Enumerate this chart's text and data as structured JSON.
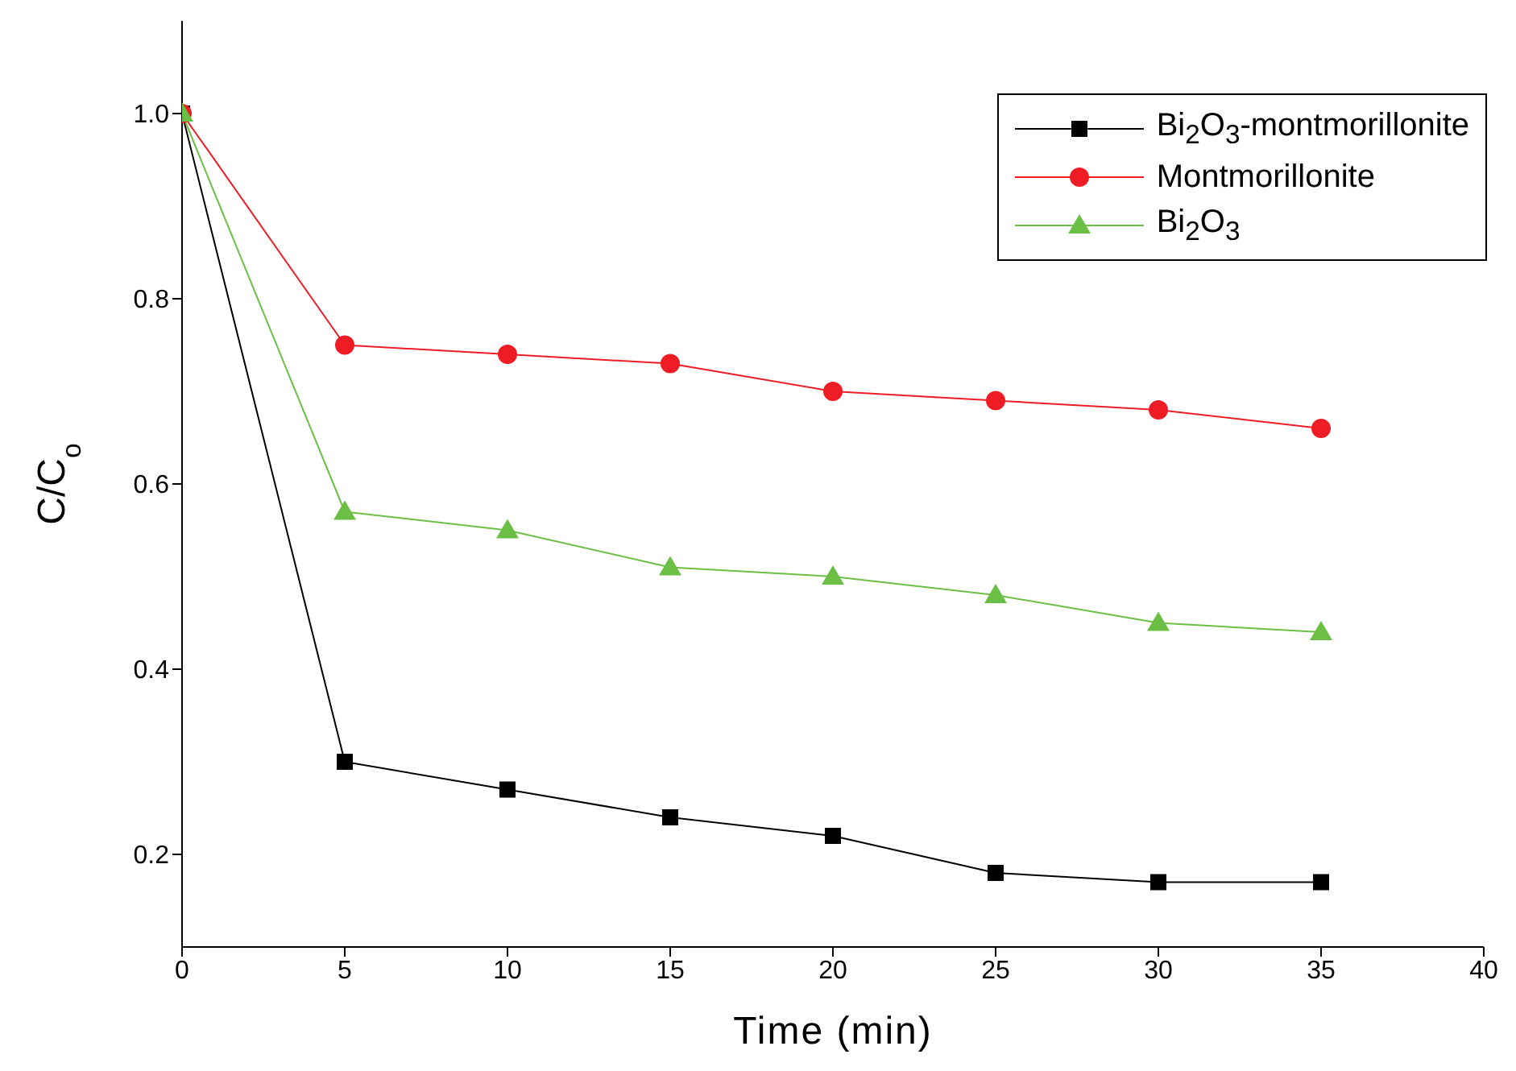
{
  "chart_data": {
    "type": "line",
    "xlabel": "Time (min)",
    "ylabel": "C/C$_{o}$",
    "x": [
      0,
      5,
      10,
      15,
      20,
      25,
      30,
      35
    ],
    "series": [
      {
        "name": "Bi$_{2}$O$_{3}$-montmorillonite",
        "color": "#000000",
        "marker": "square",
        "values": [
          1.0,
          0.3,
          0.27,
          0.24,
          0.22,
          0.18,
          0.17,
          0.17
        ]
      },
      {
        "name": "Montmorillonite",
        "color": "#ee1c25",
        "marker": "circle",
        "values": [
          1.0,
          0.75,
          0.74,
          0.73,
          0.7,
          0.69,
          0.68,
          0.66
        ]
      },
      {
        "name": "Bi$_{2}$O$_{3}$",
        "color": "#6cbf45",
        "marker": "triangle",
        "values": [
          1.0,
          0.57,
          0.55,
          0.51,
          0.5,
          0.48,
          0.45,
          0.44
        ]
      }
    ],
    "xlim": [
      0,
      40
    ],
    "xticks": [
      0,
      5,
      10,
      15,
      20,
      25,
      30,
      35,
      40
    ],
    "ylim": [
      0.1,
      1.1
    ],
    "yticks": [
      {
        "value": 0.2,
        "label": "0.2"
      },
      {
        "value": 0.4,
        "label": "0.4"
      },
      {
        "value": 0.6,
        "label": "0.6"
      },
      {
        "value": 0.8,
        "label": "0.8"
      },
      {
        "value": 1,
        "label": "1.0"
      }
    ],
    "grid": false,
    "legend": "top right"
  }
}
